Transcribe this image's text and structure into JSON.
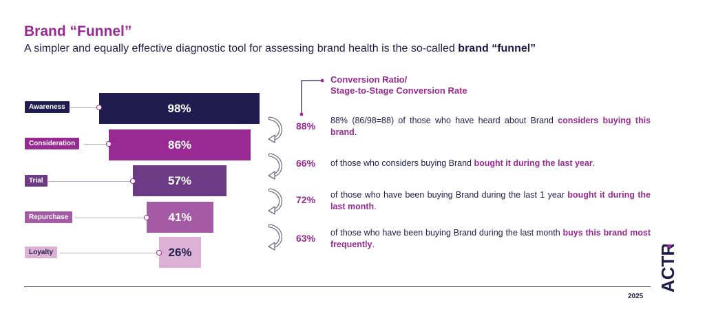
{
  "header": {
    "title": "Brand “Funnel”",
    "subtitle_prefix": "A simpler and equally effective diagnostic tool for assessing brand health is the so-called ",
    "subtitle_bold": "brand “funnel”"
  },
  "funnel": {
    "stages": [
      {
        "label": "Awareness",
        "value": "98%",
        "color": "#201c4f",
        "label_color": "#201c4f",
        "text_color": "#ffffff"
      },
      {
        "label": "Consideration",
        "value": "86%",
        "color": "#9a2a93",
        "label_color": "#9a2a93",
        "text_color": "#ffffff"
      },
      {
        "label": "Trial",
        "value": "57%",
        "color": "#6d3a86",
        "label_color": "#6d3a86",
        "text_color": "#ffffff"
      },
      {
        "label": "Repurchase",
        "value": "41%",
        "color": "#a45aa5",
        "label_color": "#a45aa5",
        "text_color": "#ffffff"
      },
      {
        "label": "Loyalty",
        "value": "26%",
        "color": "#ddb1d6",
        "label_color": "#ddb1d6",
        "text_color": "#1f1d4a"
      }
    ]
  },
  "conversion": {
    "title_line1": "Conversion Ratio/",
    "title_line2": "Stage-to-Stage Conversion Rate",
    "rows": [
      {
        "ratio": "88%",
        "text": "88% (86/98=88) of those who have heard about Brand ",
        "highlight": "considers buying this brand",
        "end": "."
      },
      {
        "ratio": "66%",
        "text": "of those who considers buying Brand ",
        "highlight": "bought it during the last year",
        "end": "."
      },
      {
        "ratio": "72%",
        "text": "of those who have been buying Brand during the last 1 year ",
        "highlight": "bought it during the last month",
        "end": "."
      },
      {
        "ratio": "63%",
        "text": "of those who have been buying Brand during the last month ",
        "highlight": "buys this brand most frequently",
        "end": "."
      }
    ]
  },
  "footer": {
    "year": "2025",
    "logo_text": "ACTR"
  }
}
